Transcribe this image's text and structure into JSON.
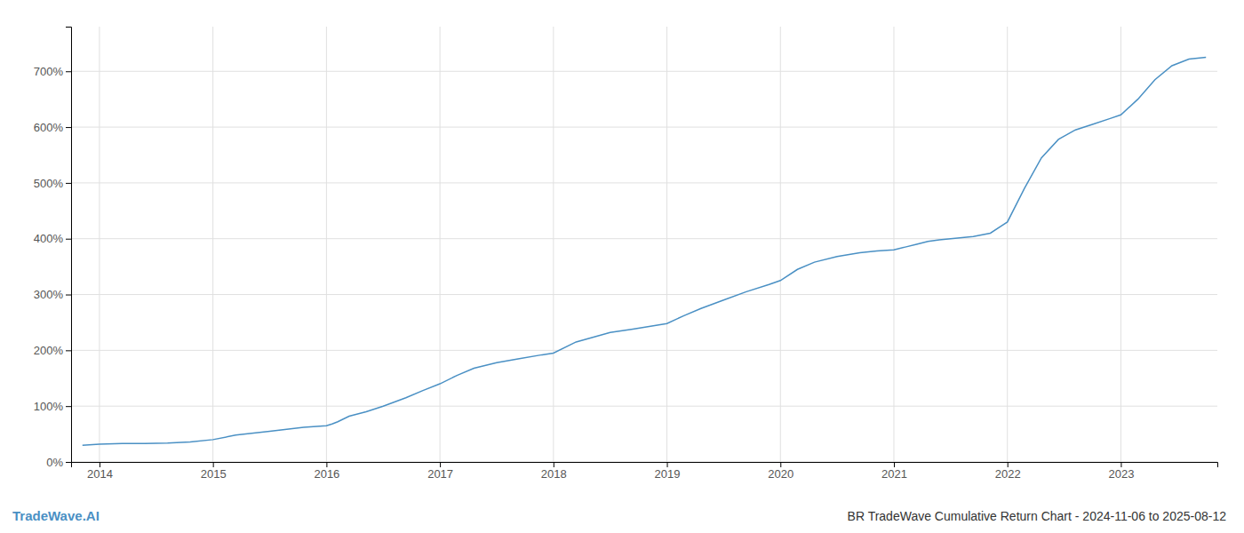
{
  "chart_data": {
    "type": "line",
    "title": "BR TradeWave Cumulative Return Chart - 2024-11-06 to 2025-08-12",
    "annotations": [
      "TradeWave.AI"
    ],
    "color": "#4a90c4",
    "grid": true,
    "x": [
      2013.85,
      2014.0,
      2014.2,
      2014.4,
      2014.6,
      2014.8,
      2015.0,
      2015.2,
      2015.5,
      2015.8,
      2016.0,
      2016.05,
      2016.1,
      2016.2,
      2016.35,
      2016.5,
      2016.7,
      2016.85,
      2017.0,
      2017.15,
      2017.3,
      2017.5,
      2017.7,
      2017.9,
      2018.0,
      2018.2,
      2018.5,
      2018.7,
      2019.0,
      2019.15,
      2019.3,
      2019.5,
      2019.7,
      2019.9,
      2020.0,
      2020.15,
      2020.3,
      2020.5,
      2020.7,
      2020.85,
      2021.0,
      2021.1,
      2021.2,
      2021.3,
      2021.4,
      2021.5,
      2021.6,
      2021.7,
      2021.85,
      2022.0,
      2022.15,
      2022.3,
      2022.45,
      2022.6,
      2022.75,
      2022.9,
      2023.0,
      2023.15,
      2023.3,
      2023.45,
      2023.6,
      2023.75
    ],
    "values": [
      30,
      32,
      33,
      33,
      34,
      36,
      40,
      48,
      55,
      62,
      65,
      68,
      72,
      82,
      90,
      100,
      115,
      128,
      140,
      155,
      168,
      178,
      185,
      192,
      195,
      215,
      232,
      238,
      248,
      262,
      275,
      290,
      305,
      318,
      325,
      345,
      358,
      368,
      375,
      378,
      380,
      385,
      390,
      395,
      398,
      400,
      402,
      404,
      410,
      430,
      490,
      545,
      578,
      595,
      605,
      615,
      622,
      650,
      685,
      710,
      722,
      725
    ],
    "xlim": [
      2013.75,
      2023.85
    ],
    "xticks": [
      2014,
      2015,
      2016,
      2017,
      2018,
      2019,
      2020,
      2021,
      2022,
      2023
    ],
    "ylim": [
      0,
      780
    ],
    "yticks": [
      {
        "value": 0,
        "label": "0%"
      },
      {
        "value": 100,
        "label": "100%"
      },
      {
        "value": 200,
        "label": "200%"
      },
      {
        "value": 300,
        "label": "300%"
      },
      {
        "value": 400,
        "label": "400%"
      },
      {
        "value": 500,
        "label": "500%"
      },
      {
        "value": 600,
        "label": "600%"
      },
      {
        "value": 700,
        "label": "700%"
      }
    ]
  }
}
